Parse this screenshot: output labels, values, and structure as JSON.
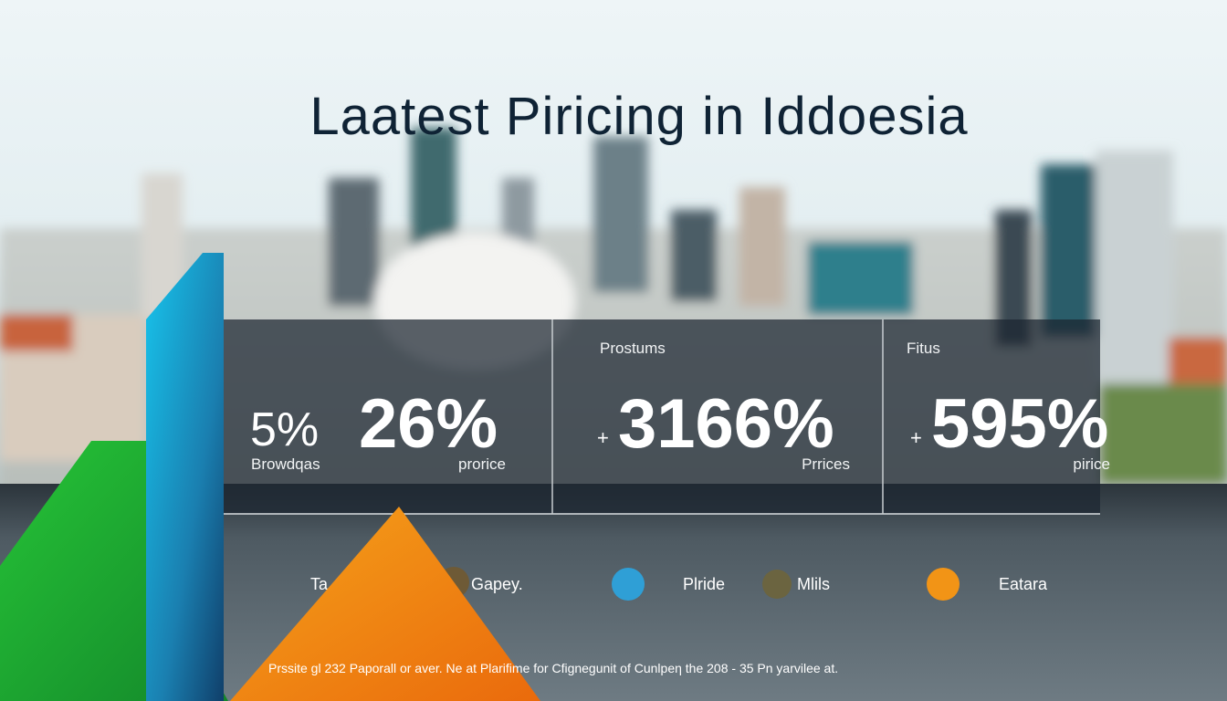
{
  "title": "Laatest Piricing in Iddoesia",
  "panels": [
    {
      "stats": [
        "5%",
        "26%"
      ],
      "labels": [
        "Browdqas",
        "prorice"
      ]
    },
    {
      "header": "Prostums",
      "prefix": "+",
      "stat": "3166%",
      "label": "Prrices"
    },
    {
      "header": "Fitus",
      "prefix": "+",
      "stat": "595%",
      "label": "pirice"
    }
  ],
  "legend": [
    {
      "label": "Ta"
    },
    {
      "label": "Gapey.",
      "color": "#6e5a36"
    },
    {
      "label": "Plride",
      "color": "#2f9fd6"
    },
    {
      "label": "Mlils",
      "color": "#6b6440"
    },
    {
      "label": "Eatara",
      "color": "#f29416"
    }
  ],
  "footer": "Prssite gl 232 Paporall or aver. Ne at Plarifime for Cfignegunit of Cunlpeη the 208 - 35 Pn yarvilee at."
}
